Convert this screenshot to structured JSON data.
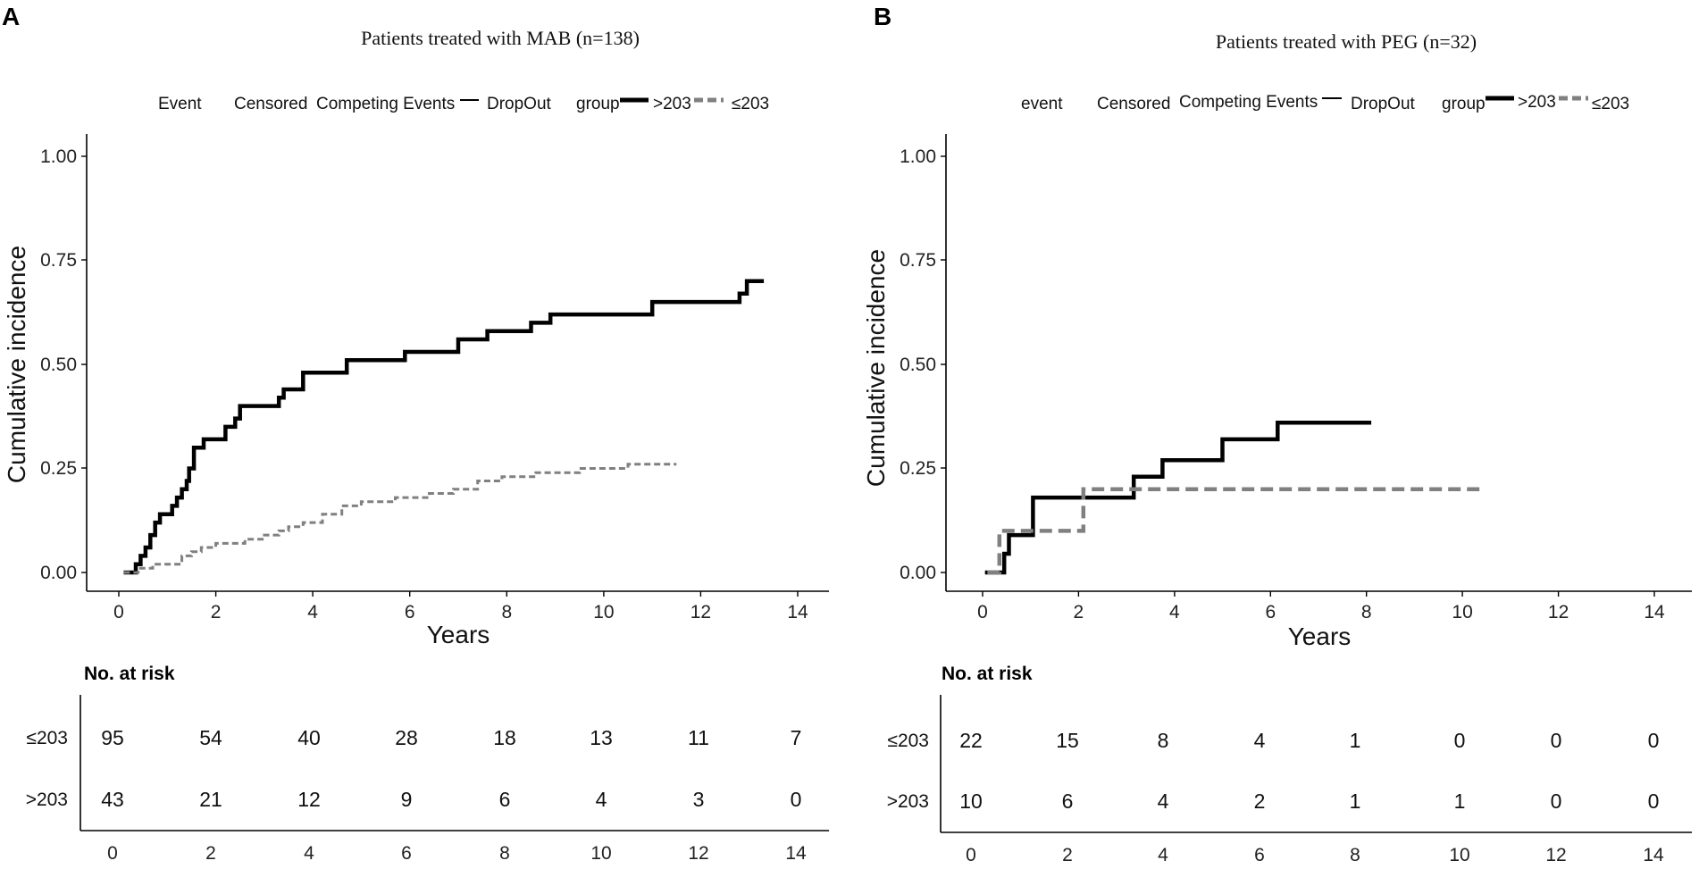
{
  "chart_data": [
    {
      "type": "line",
      "step": true,
      "panel_label": "A",
      "title": "Patients treated with MAB (n=138)",
      "xlabel": "Years",
      "ylabel": "Cumulative incidence",
      "xlim": [
        0,
        14
      ],
      "ylim": [
        0,
        1
      ],
      "xticks": [
        "0",
        "2",
        "4",
        "6",
        "8",
        "10",
        "12",
        "14"
      ],
      "yticks": [
        "0.00",
        "0.25",
        "0.50",
        "0.75",
        "1.00"
      ],
      "grid": false,
      "legend": {
        "position": "top",
        "event_title": "Event",
        "items": [
          "Censored",
          "Competing Events",
          "DropOut"
        ],
        "group_title": "group",
        "groups": [
          ">203",
          "≤203"
        ]
      },
      "series": [
        {
          "name": ">203",
          "color": "#000000",
          "dash": "solid",
          "x": [
            0.1,
            0.35,
            0.45,
            0.55,
            0.65,
            0.75,
            0.85,
            1.1,
            1.2,
            1.3,
            1.4,
            1.45,
            1.55,
            1.75,
            2.2,
            2.4,
            2.5,
            3.3,
            3.4,
            3.8,
            4.7,
            5.9,
            7.0,
            7.6,
            8.5,
            8.9,
            11.0,
            12.8,
            12.95,
            13.3
          ],
          "y": [
            0.0,
            0.02,
            0.04,
            0.06,
            0.09,
            0.12,
            0.14,
            0.16,
            0.18,
            0.2,
            0.22,
            0.25,
            0.3,
            0.32,
            0.35,
            0.37,
            0.4,
            0.42,
            0.44,
            0.48,
            0.51,
            0.53,
            0.56,
            0.58,
            0.6,
            0.62,
            0.65,
            0.67,
            0.7,
            0.7
          ]
        },
        {
          "name": "≤203",
          "color": "#808080",
          "dash": "dashed",
          "x": [
            0.1,
            0.4,
            0.7,
            1.3,
            1.5,
            1.7,
            2.0,
            2.3,
            2.6,
            3.0,
            3.3,
            3.5,
            3.8,
            4.2,
            4.6,
            5.0,
            5.7,
            6.4,
            6.9,
            7.4,
            7.9,
            8.6,
            9.0,
            9.5,
            10.5,
            11.5
          ],
          "y": [
            0.0,
            0.01,
            0.02,
            0.04,
            0.05,
            0.06,
            0.07,
            0.07,
            0.08,
            0.09,
            0.1,
            0.11,
            0.12,
            0.14,
            0.16,
            0.17,
            0.18,
            0.19,
            0.2,
            0.22,
            0.23,
            0.24,
            0.24,
            0.25,
            0.26,
            0.26
          ]
        }
      ],
      "risk_table": {
        "title": "No. at risk",
        "times": [
          "0",
          "2",
          "4",
          "6",
          "8",
          "10",
          "12",
          "14"
        ],
        "rows": [
          {
            "label": "≤203",
            "values": [
              "95",
              "54",
              "40",
              "28",
              "18",
              "13",
              "11",
              "7"
            ]
          },
          {
            "label": ">203",
            "values": [
              "43",
              "21",
              "12",
              "9",
              "6",
              "4",
              "3",
              "0"
            ]
          }
        ]
      }
    },
    {
      "type": "line",
      "step": true,
      "panel_label": "B",
      "title": "Patients treated with PEG (n=32)",
      "xlabel": "Years",
      "ylabel": "Cumulative incidence",
      "xlim": [
        0,
        14
      ],
      "ylim": [
        0,
        1
      ],
      "xticks": [
        "0",
        "2",
        "4",
        "6",
        "8",
        "10",
        "12",
        "14"
      ],
      "yticks": [
        "0.00",
        "0.25",
        "0.50",
        "0.75",
        "1.00"
      ],
      "grid": false,
      "legend": {
        "position": "top",
        "event_title": "event",
        "items": [
          "Censored",
          "Competing Events",
          "DropOut"
        ],
        "group_title": "group",
        "groups": [
          ">203",
          "≤203"
        ]
      },
      "series": [
        {
          "name": ">203",
          "color": "#000000",
          "dash": "solid",
          "x": [
            0.05,
            0.45,
            0.55,
            0.65,
            1.05,
            3.15,
            3.75,
            5.0,
            6.15,
            8.1
          ],
          "y": [
            0.0,
            0.045,
            0.09,
            0.09,
            0.18,
            0.23,
            0.27,
            0.32,
            0.36,
            0.36
          ]
        },
        {
          "name": "≤203",
          "color": "#808080",
          "dash": "dashed",
          "x": [
            0.1,
            0.35,
            2.1,
            10.4
          ],
          "y": [
            0.0,
            0.1,
            0.2,
            0.2
          ]
        }
      ],
      "risk_table": {
        "title": "No. at risk",
        "times": [
          "0",
          "2",
          "4",
          "6",
          "8",
          "10",
          "12",
          "14"
        ],
        "rows": [
          {
            "label": "≤203",
            "values": [
              "22",
              "15",
              "8",
              "4",
              "1",
              "0",
              "0",
              "0"
            ]
          },
          {
            "label": ">203",
            "values": [
              "10",
              "6",
              "4",
              "2",
              "1",
              "1",
              "0",
              "0"
            ]
          }
        ]
      }
    }
  ]
}
